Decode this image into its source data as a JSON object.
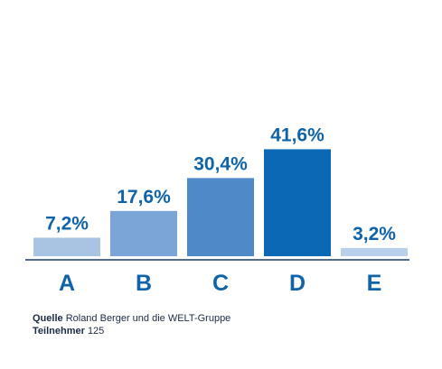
{
  "chart_data": {
    "type": "bar",
    "categories": [
      "A",
      "B",
      "C",
      "D",
      "E"
    ],
    "values": [
      7.2,
      17.6,
      30.4,
      41.6,
      3.2
    ],
    "value_labels": [
      "7,2%",
      "17,6%",
      "30,4%",
      "41,6%",
      "3,2%"
    ],
    "colors": [
      "#a9c3e2",
      "#7ba5d7",
      "#5089c8",
      "#0a68b5",
      "#b8d0ea"
    ],
    "ylim": [
      0,
      50
    ],
    "grid": false,
    "legend": "none"
  },
  "footer": {
    "source_label": "Quelle",
    "source_text": "Roland Berger und die WELT-Gruppe",
    "participants_label": "Teilnehmer",
    "participants_value": "125"
  }
}
